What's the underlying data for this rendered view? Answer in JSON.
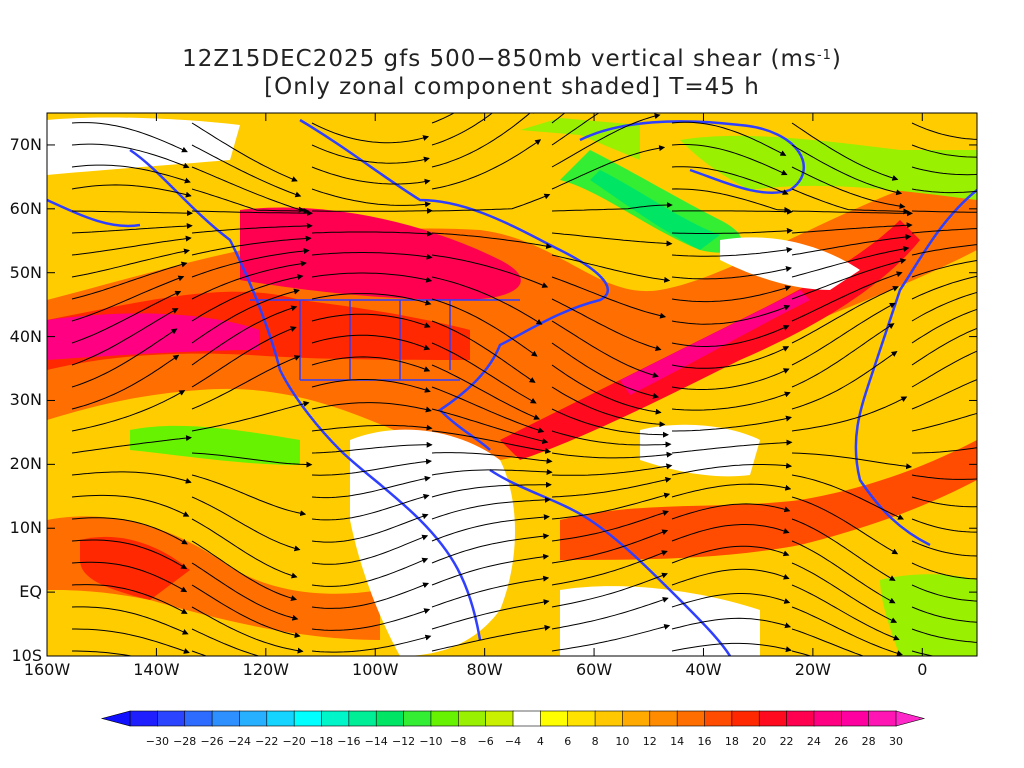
{
  "title": {
    "line1_prefix": "12Z15DEC2025 gfs 500−850mb vertical shear (ms",
    "line1_sup": "-1",
    "line1_suffix": ")",
    "line2": "[Only zonal component shaded] T=45 h"
  },
  "axes": {
    "lat_labels": [
      "70N",
      "60N",
      "50N",
      "40N",
      "30N",
      "20N",
      "10N",
      "EQ",
      "10S"
    ],
    "lon_labels": [
      "160W",
      "140W",
      "120W",
      "100W",
      "80W",
      "60W",
      "40W",
      "20W",
      "0"
    ]
  },
  "colorbar": {
    "labels": [
      "−30",
      "−28",
      "−26",
      "−24",
      "−22",
      "−20",
      "−18",
      "−16",
      "−14",
      "−12",
      "−10",
      "−8",
      "−6",
      "−4",
      "4",
      "6",
      "8",
      "10",
      "12",
      "14",
      "16",
      "18",
      "20",
      "22",
      "24",
      "26",
      "28",
      "30"
    ],
    "colors": [
      "#1e1eff",
      "#2a44ff",
      "#2e6bff",
      "#2e8fff",
      "#27b0ff",
      "#15d4ff",
      "#00ffff",
      "#00f5c8",
      "#00ee96",
      "#00e664",
      "#33ee33",
      "#66f200",
      "#99f000",
      "#c8f000",
      "#ffffff",
      "#ffff00",
      "#ffe200",
      "#ffc800",
      "#ffaa00",
      "#ff8c00",
      "#ff6e00",
      "#ff4c00",
      "#ff2800",
      "#ff0a1e",
      "#ff0050",
      "#ff0082",
      "#ff00a0",
      "#ff14b4"
    ]
  },
  "map_data": {
    "lon_range": [
      -160,
      10
    ],
    "lat_range": [
      -10,
      75
    ],
    "field": "500-850mb vertical shear, zonal component shaded",
    "units": "ms-1"
  }
}
